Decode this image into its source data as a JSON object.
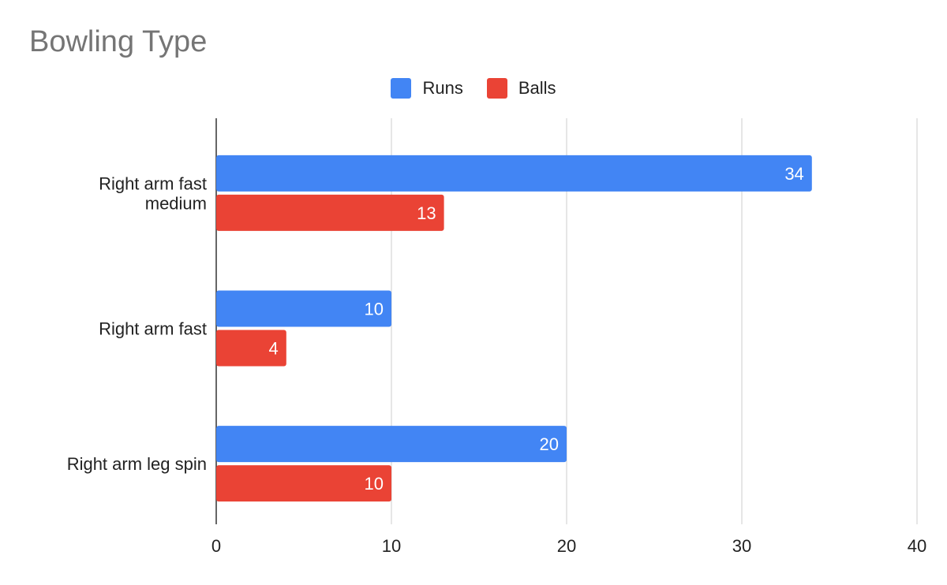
{
  "chart_data": {
    "type": "bar",
    "orientation": "horizontal",
    "title": "Bowling Type",
    "categories": [
      "Right arm fast medium",
      "Right arm fast",
      "Right arm leg spin"
    ],
    "category_lines": [
      [
        "Right arm fast",
        "medium"
      ],
      [
        "Right arm fast"
      ],
      [
        "Right arm leg spin"
      ]
    ],
    "series": [
      {
        "name": "Runs",
        "color": "#4285F4",
        "values": [
          34,
          10,
          20
        ]
      },
      {
        "name": "Balls",
        "color": "#EA4335",
        "values": [
          13,
          4,
          10
        ]
      }
    ],
    "xlim": [
      0,
      40
    ],
    "xticks": [
      "0",
      "10",
      "20",
      "30",
      "40"
    ],
    "grid": true,
    "legend_position": "top",
    "data_labels": true
  }
}
